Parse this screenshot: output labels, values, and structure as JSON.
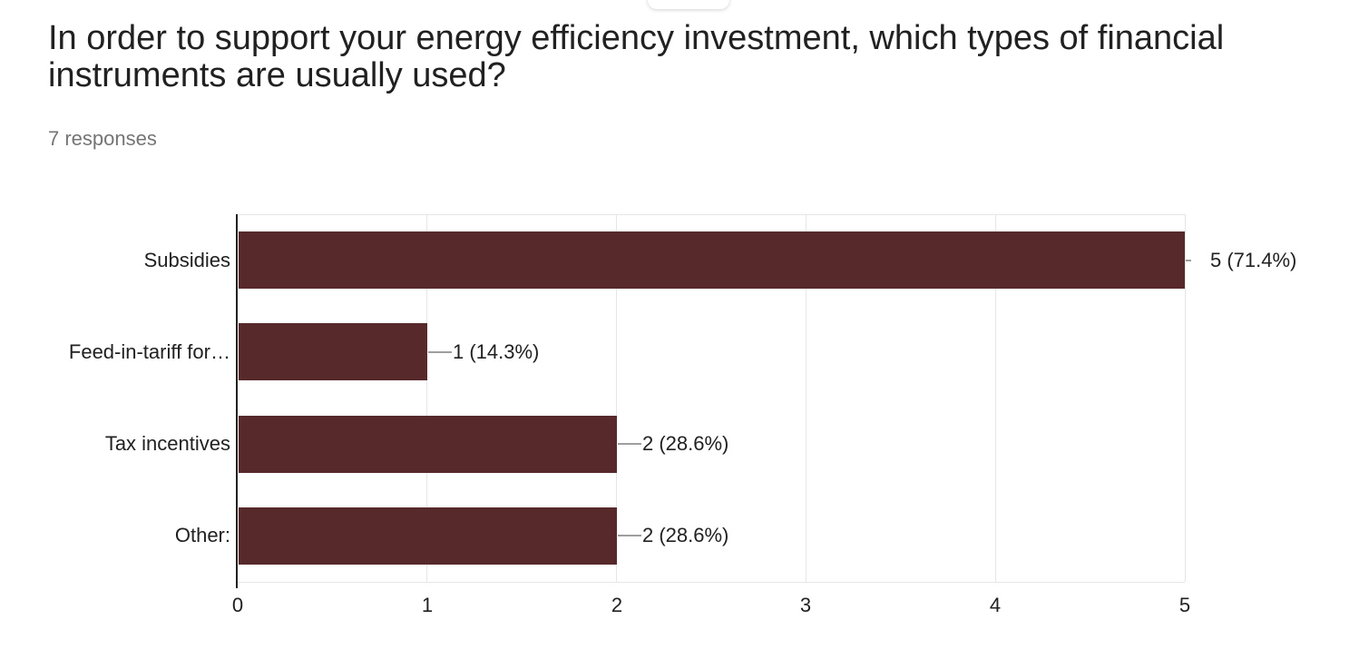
{
  "header": {
    "title_line1": "In order to support your energy efficiency investment, which types of financial",
    "title_line2": "instruments are usually used?",
    "responses": "7 responses"
  },
  "chart_data": {
    "type": "bar",
    "orientation": "horizontal",
    "title": "In order to support your energy efficiency investment, which types of financial instruments are usually used?",
    "subtitle": "7 responses",
    "total_responses": 7,
    "categories": [
      "Subsidies",
      "Feed-in-tariff for…",
      "Tax incentives",
      "Other:"
    ],
    "values": [
      5,
      1,
      2,
      2
    ],
    "percentages": [
      71.4,
      14.3,
      28.6,
      28.6
    ],
    "value_labels": [
      "5 (71.4%)",
      "1 (14.3%)",
      "2 (28.6%)",
      "2 (28.6%)"
    ],
    "x_ticks": [
      "0",
      "1",
      "2",
      "3",
      "4",
      "5"
    ],
    "xlim": [
      0,
      5
    ],
    "xlabel": "",
    "ylabel": "",
    "grid": true,
    "legend_position": "none",
    "colors": {
      "bar": "#57292b",
      "gridline": "#e6e6e6",
      "axis_line": "#212121",
      "stem": "#9e9e9e",
      "tick_label": "#212121",
      "category_label": "#212121",
      "value_label": "#212121",
      "title": "#212121",
      "subtitle": "#757575"
    }
  }
}
